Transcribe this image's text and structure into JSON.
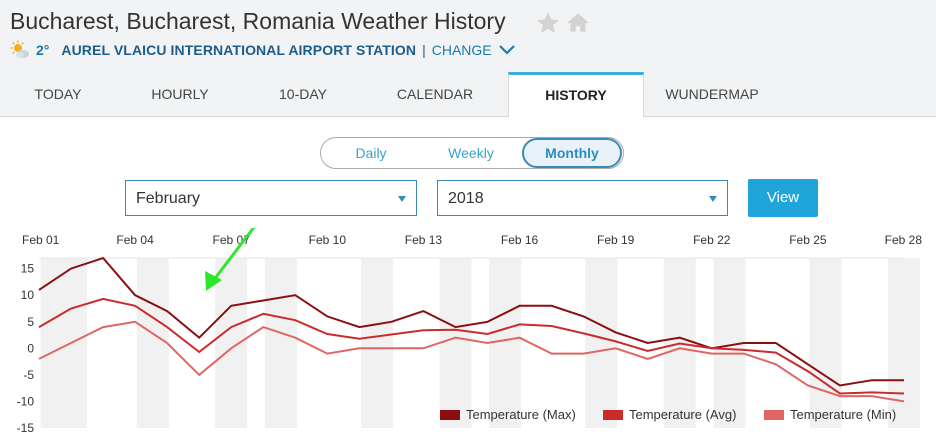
{
  "header": {
    "title": "Bucharest, Bucharest, Romania Weather History",
    "current_temp": "2°",
    "station": "AUREL VLAICU INTERNATIONAL AIRPORT STATION",
    "separator": "|",
    "change_label": "CHANGE"
  },
  "tabs": [
    {
      "label": "TODAY",
      "active": false
    },
    {
      "label": "HOURLY",
      "active": false
    },
    {
      "label": "10-DAY",
      "active": false
    },
    {
      "label": "CALENDAR",
      "active": false
    },
    {
      "label": "HISTORY",
      "active": true
    },
    {
      "label": "WUNDERMAP",
      "active": false
    }
  ],
  "period_toggle": {
    "daily": "Daily",
    "weekly": "Weekly",
    "monthly": "Monthly",
    "selected": "Monthly"
  },
  "controls": {
    "month": "February",
    "year": "2018",
    "view_label": "View"
  },
  "colors": {
    "accent": "#1fa5d9",
    "max": "#8b0e10",
    "avg": "#cc2b2b",
    "min": "#e06666"
  },
  "chart_data": {
    "type": "line",
    "x_tick_labels": [
      "Feb 01",
      "Feb 04",
      "Feb 07",
      "Feb 10",
      "Feb 13",
      "Feb 16",
      "Feb 19",
      "Feb 22",
      "Feb 25",
      "Feb 28"
    ],
    "y_tick_labels": [
      "15",
      "10",
      "5",
      "0",
      "-5",
      "-10",
      "-15"
    ],
    "ylim": [
      -15,
      17
    ],
    "x": [
      1,
      2,
      3,
      4,
      5,
      6,
      7,
      8,
      9,
      10,
      11,
      12,
      13,
      14,
      15,
      16,
      17,
      18,
      19,
      20,
      21,
      22,
      23,
      24,
      25,
      26,
      27,
      28
    ],
    "series": [
      {
        "name": "Temperature (Max)",
        "color": "#8b0e10",
        "values": [
          11,
          15,
          17,
          10,
          7,
          2,
          8,
          9,
          10,
          6,
          4,
          5,
          7,
          4,
          5,
          8,
          8,
          6,
          3,
          1,
          2,
          0,
          1,
          1,
          -3,
          -7,
          -6,
          -6
        ]
      },
      {
        "name": "Temperature (Avg)",
        "color": "#cc2b2b",
        "values": [
          4,
          7.5,
          9.3,
          8,
          4,
          -0.7,
          4,
          6.5,
          5.3,
          2.7,
          1.8,
          2.6,
          3.4,
          3.5,
          2.7,
          4.5,
          4.2,
          2.8,
          1.3,
          -0.5,
          0.9,
          0,
          -0.3,
          -0.8,
          -4.3,
          -8.5,
          -8.3,
          -8.5
        ]
      },
      {
        "name": "Temperature (Min)",
        "color": "#e06666",
        "values": [
          -2,
          1,
          4,
          5,
          1,
          -5,
          0,
          4,
          2,
          -1,
          0,
          0,
          0,
          2,
          1,
          2,
          -1,
          -1,
          0,
          -2,
          0,
          -1,
          -1,
          -3,
          -7,
          -9,
          -9,
          -10
        ]
      }
    ],
    "grid": true,
    "legend_position": "bottom-right"
  }
}
